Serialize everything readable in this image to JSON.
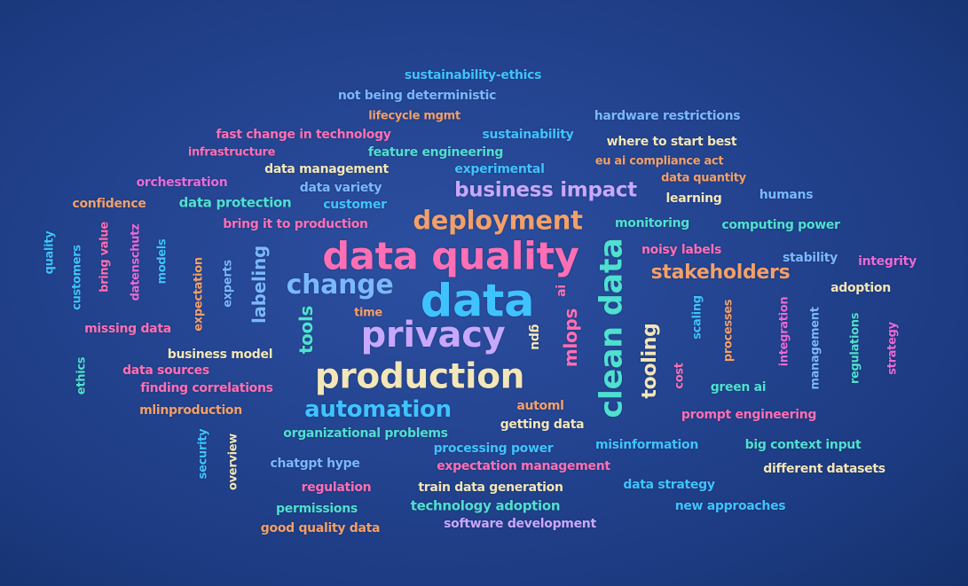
{
  "palette": {
    "background": "#23438f",
    "cyan": "#3fc3ff",
    "light_blue": "#7ab8ff",
    "pink": "#ff6fb5",
    "magenta": "#e86bd9",
    "lavender": "#c8a8ff",
    "cream": "#f3e6b8",
    "orange": "#f2a06a",
    "teal": "#4fe0d0",
    "green": "#7cf0b0"
  },
  "words": [
    {
      "text": "sustainability-ethics"
    },
    {
      "text": "not being deterministic"
    },
    {
      "text": "lifecycle mgmt"
    },
    {
      "text": "hardware restrictions"
    },
    {
      "text": "fast change in technology"
    },
    {
      "text": "sustainability"
    },
    {
      "text": "where to start best"
    },
    {
      "text": "infrastructure"
    },
    {
      "text": "feature engineering"
    },
    {
      "text": "eu ai compliance act"
    },
    {
      "text": "data management"
    },
    {
      "text": "experimental"
    },
    {
      "text": "data quantity"
    },
    {
      "text": "orchestration"
    },
    {
      "text": "data variety"
    },
    {
      "text": "business impact"
    },
    {
      "text": "learning"
    },
    {
      "text": "humans"
    },
    {
      "text": "confidence"
    },
    {
      "text": "data protection"
    },
    {
      "text": "customer"
    },
    {
      "text": "deployment"
    },
    {
      "text": "monitoring"
    },
    {
      "text": "computing power"
    },
    {
      "text": "bring it to production"
    },
    {
      "text": "data quality"
    },
    {
      "text": "noisy labels"
    },
    {
      "text": "stability"
    },
    {
      "text": "integrity"
    },
    {
      "text": "stakeholders"
    },
    {
      "text": "change"
    },
    {
      "text": "data"
    },
    {
      "text": "adoption"
    },
    {
      "text": "quality"
    },
    {
      "text": "customers"
    },
    {
      "text": "bring value"
    },
    {
      "text": "datenschutz"
    },
    {
      "text": "models"
    },
    {
      "text": "expectation"
    },
    {
      "text": "experts"
    },
    {
      "text": "labeling"
    },
    {
      "text": "tools"
    },
    {
      "text": "time"
    },
    {
      "text": "privacy"
    },
    {
      "text": "ai"
    },
    {
      "text": "mlops"
    },
    {
      "text": "gpu"
    },
    {
      "text": "clean data"
    },
    {
      "text": "scaling"
    },
    {
      "text": "processes"
    },
    {
      "text": "integration"
    },
    {
      "text": "management"
    },
    {
      "text": "regulations"
    },
    {
      "text": "strategy"
    },
    {
      "text": "missing data"
    },
    {
      "text": "business model"
    },
    {
      "text": "ethics"
    },
    {
      "text": "data sources"
    },
    {
      "text": "production"
    },
    {
      "text": "tooling"
    },
    {
      "text": "cost"
    },
    {
      "text": "green ai"
    },
    {
      "text": "finding correlations"
    },
    {
      "text": "automation"
    },
    {
      "text": "mlinproduction"
    },
    {
      "text": "automl"
    },
    {
      "text": "prompt engineering"
    },
    {
      "text": "getting data"
    },
    {
      "text": "organizational problems"
    },
    {
      "text": "security"
    },
    {
      "text": "overview"
    },
    {
      "text": "processing power"
    },
    {
      "text": "misinformation"
    },
    {
      "text": "big context input"
    },
    {
      "text": "chatgpt hype"
    },
    {
      "text": "expectation management"
    },
    {
      "text": "different datasets"
    },
    {
      "text": "regulation"
    },
    {
      "text": "train data generation"
    },
    {
      "text": "data strategy"
    },
    {
      "text": "permissions"
    },
    {
      "text": "technology adoption"
    },
    {
      "text": "new approaches"
    },
    {
      "text": "good quality data"
    },
    {
      "text": "software development"
    }
  ]
}
